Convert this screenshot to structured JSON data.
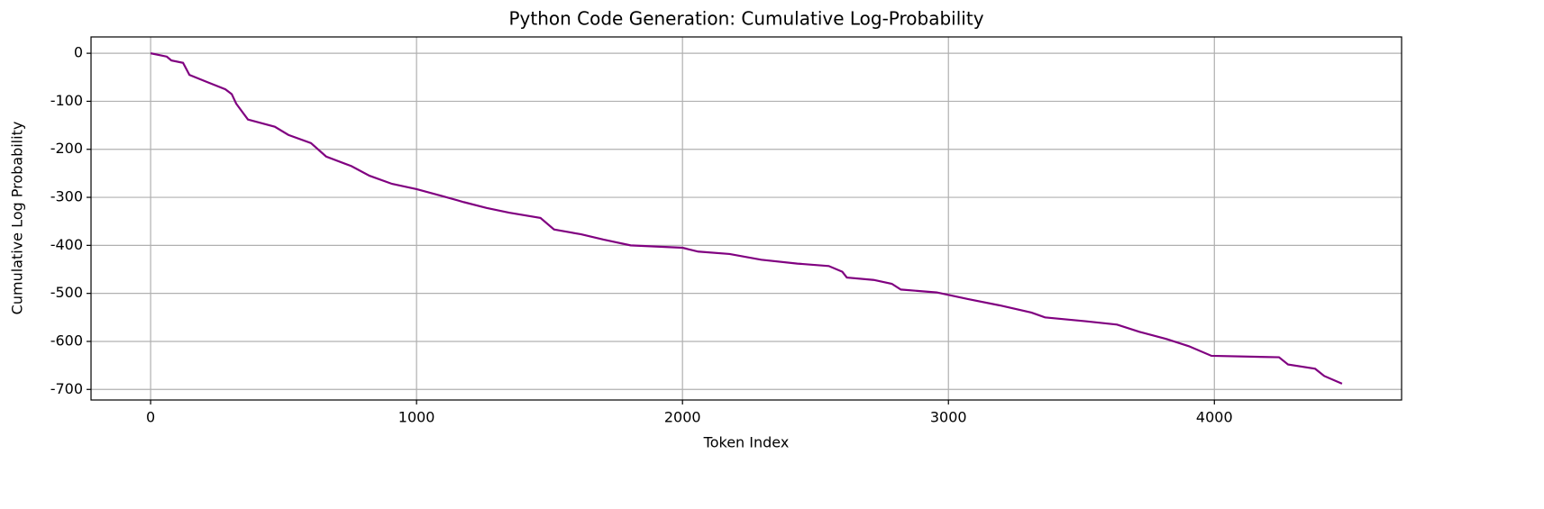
{
  "chart_data": {
    "type": "line",
    "title": "Python Code Generation: Cumulative Log-Probability",
    "xlabel": "Token Index",
    "ylabel": "Cumulative Log Probability",
    "x": [
      0,
      61,
      78,
      122,
      146,
      213,
      281,
      305,
      322,
      366,
      467,
      518,
      603,
      660,
      755,
      823,
      908,
      1000,
      1094,
      1178,
      1263,
      1348,
      1466,
      1517,
      1619,
      1703,
      1805,
      2000,
      2059,
      2177,
      2296,
      2432,
      2550,
      2601,
      2618,
      2719,
      2787,
      2821,
      2956,
      3075,
      3193,
      3312,
      3363,
      3515,
      3634,
      3718,
      3820,
      3904,
      3989,
      4243,
      4277,
      4379,
      4413,
      4480
    ],
    "series": [
      {
        "name": "Cumulative Log Probability",
        "color": "#800080",
        "values": [
          0,
          -7,
          -15,
          -20,
          -45,
          -60,
          -75,
          -85,
          -105,
          -138,
          -153,
          -170,
          -187,
          -215,
          -235,
          -255,
          -272,
          -283,
          -297,
          -310,
          -322,
          -332,
          -343,
          -367,
          -377,
          -388,
          -400,
          -405,
          -413,
          -418,
          -430,
          -438,
          -443,
          -455,
          -467,
          -472,
          -480,
          -492,
          -498,
          -512,
          -525,
          -540,
          -550,
          -558,
          -565,
          -580,
          -595,
          -610,
          -630,
          -633,
          -648,
          -657,
          -672,
          -688
        ]
      }
    ],
    "xlim": [
      -224,
      4704
    ],
    "ylim": [
      -722,
      34
    ],
    "xticks": [
      0,
      1000,
      2000,
      3000,
      4000
    ],
    "yticks": [
      0,
      -100,
      -200,
      -300,
      -400,
      -500,
      -600,
      -700
    ],
    "grid": true
  }
}
